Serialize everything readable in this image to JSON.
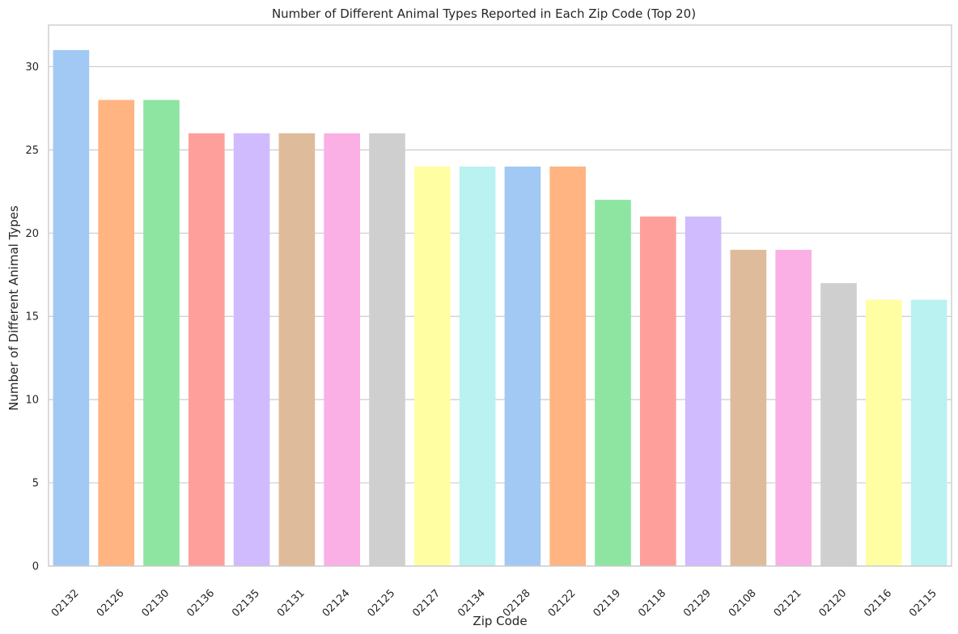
{
  "chart_data": {
    "type": "bar",
    "title": "Number of Different Animal Types Reported in Each Zip Code (Top 20)",
    "xlabel": "Zip Code",
    "ylabel": "Number of Different Animal Types",
    "categories": [
      "02132",
      "02126",
      "02130",
      "02136",
      "02135",
      "02131",
      "02124",
      "02125",
      "02127",
      "02134",
      "02128",
      "02122",
      "02119",
      "02118",
      "02129",
      "02108",
      "02121",
      "02120",
      "02116",
      "02115"
    ],
    "values": [
      31,
      28,
      28,
      26,
      26,
      26,
      26,
      26,
      24,
      24,
      24,
      24,
      22,
      21,
      21,
      19,
      19,
      17,
      16,
      16
    ],
    "ylim": [
      0,
      32.5
    ],
    "yticks": [
      0,
      5,
      10,
      15,
      20,
      25,
      30
    ],
    "grid": "horizontal",
    "legend": "none",
    "palette": [
      "#a1c9f4",
      "#ffb482",
      "#8de5a1",
      "#ff9f9b",
      "#d0bbff",
      "#debb9b",
      "#fab0e4",
      "#cfcfcf",
      "#fffea3",
      "#b9f2f0"
    ]
  }
}
